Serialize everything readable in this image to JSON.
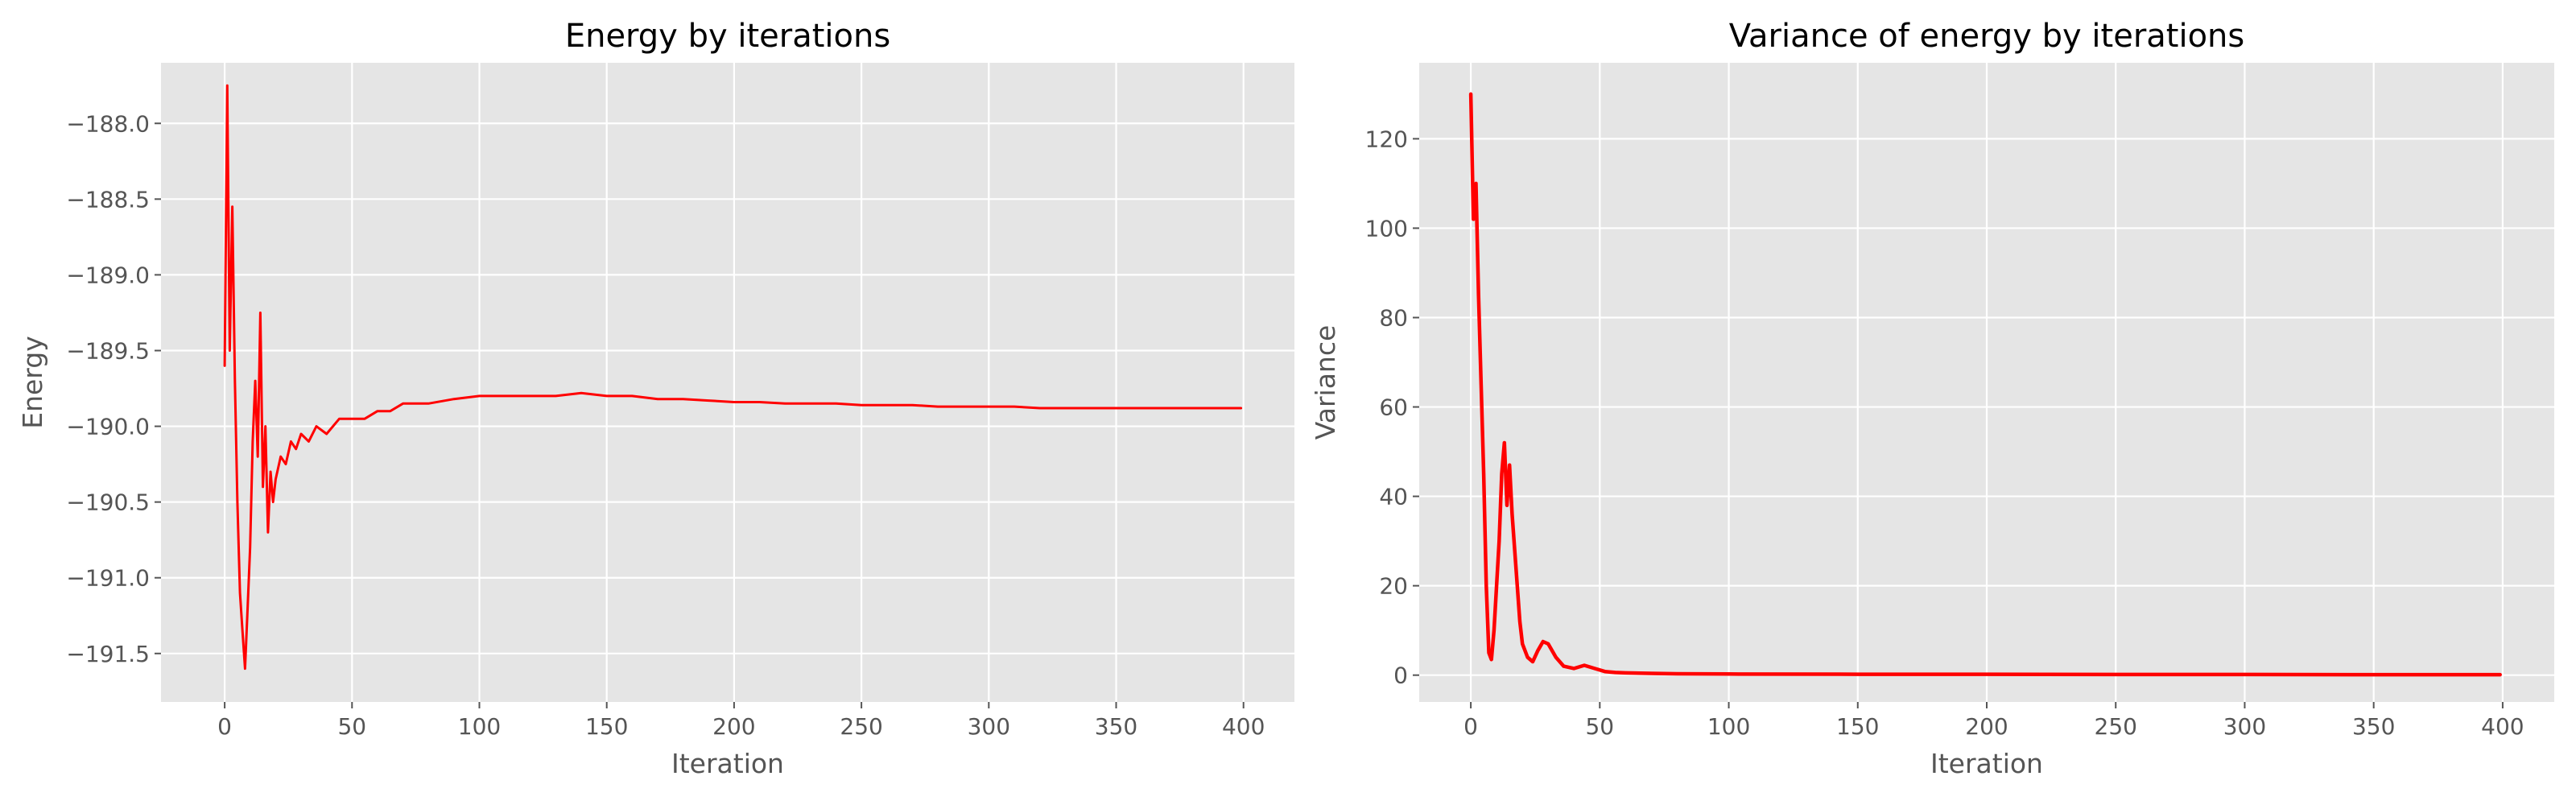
{
  "chart_data": [
    {
      "type": "line",
      "title": "Energy by iterations",
      "xlabel": "Iteration",
      "ylabel": "Energy",
      "xlim": [
        -25,
        420
      ],
      "ylim": [
        -191.82,
        -187.6
      ],
      "xticks": [
        0,
        50,
        100,
        150,
        200,
        250,
        300,
        350,
        400
      ],
      "xtick_labels": [
        "0",
        "50",
        "100",
        "150",
        "200",
        "250",
        "300",
        "350",
        "400"
      ],
      "yticks": [
        -188.0,
        -188.5,
        -189.0,
        -189.5,
        -190.0,
        -190.5,
        -191.0,
        -191.5
      ],
      "ytick_labels": [
        "−188.0",
        "−188.5",
        "−189.0",
        "−189.5",
        "−190.0",
        "−190.5",
        "−191.0",
        "−191.5"
      ],
      "grid": true,
      "style": "ggplot",
      "series": [
        {
          "color": "#ff0000",
          "x": [
            0,
            1,
            2,
            3,
            4,
            5,
            6,
            7,
            8,
            9,
            10,
            11,
            12,
            13,
            14,
            15,
            16,
            17,
            18,
            19,
            20,
            22,
            24,
            26,
            28,
            30,
            33,
            36,
            40,
            45,
            50,
            55,
            60,
            65,
            70,
            80,
            90,
            100,
            110,
            120,
            130,
            140,
            150,
            160,
            170,
            180,
            190,
            200,
            210,
            220,
            230,
            240,
            250,
            260,
            270,
            280,
            290,
            300,
            310,
            320,
            330,
            340,
            350,
            360,
            370,
            380,
            390,
            399
          ],
          "y": [
            -189.6,
            -187.75,
            -189.5,
            -188.55,
            -189.7,
            -190.5,
            -191.1,
            -191.35,
            -191.6,
            -191.2,
            -190.8,
            -190.1,
            -189.7,
            -190.2,
            -189.25,
            -190.4,
            -190.0,
            -190.7,
            -190.3,
            -190.5,
            -190.35,
            -190.2,
            -190.25,
            -190.1,
            -190.15,
            -190.05,
            -190.1,
            -190.0,
            -190.05,
            -189.95,
            -189.95,
            -189.95,
            -189.9,
            -189.9,
            -189.85,
            -189.85,
            -189.82,
            -189.8,
            -189.8,
            -189.8,
            -189.8,
            -189.78,
            -189.8,
            -189.8,
            -189.82,
            -189.82,
            -189.83,
            -189.84,
            -189.84,
            -189.85,
            -189.85,
            -189.85,
            -189.86,
            -189.86,
            -189.86,
            -189.87,
            -189.87,
            -189.87,
            -189.87,
            -189.88,
            -189.88,
            -189.88,
            -189.88,
            -189.88,
            -189.88,
            -189.88,
            -189.88,
            -189.88
          ]
        }
      ]
    },
    {
      "type": "line",
      "title": "Variance of energy by iterations",
      "xlabel": "Iteration",
      "ylabel": "Variance",
      "xlim": [
        -20,
        420
      ],
      "ylim": [
        -6,
        137
      ],
      "xticks": [
        0,
        50,
        100,
        150,
        200,
        250,
        300,
        350,
        400
      ],
      "xtick_labels": [
        "0",
        "50",
        "100",
        "150",
        "200",
        "250",
        "300",
        "350",
        "400"
      ],
      "yticks": [
        0,
        20,
        40,
        60,
        80,
        100,
        120
      ],
      "ytick_labels": [
        "0",
        "20",
        "40",
        "60",
        "80",
        "100",
        "120"
      ],
      "grid": true,
      "style": "ggplot",
      "series": [
        {
          "color": "#ff0000",
          "x": [
            0,
            1,
            2,
            3,
            4,
            5,
            6,
            7,
            8,
            9,
            10,
            11,
            12,
            13,
            14,
            15,
            16,
            17,
            18,
            19,
            20,
            22,
            24,
            26,
            28,
            30,
            33,
            36,
            40,
            44,
            48,
            52,
            56,
            60,
            70,
            80,
            100,
            150,
            200,
            250,
            300,
            350,
            399
          ],
          "y": [
            130,
            102,
            110,
            85,
            65,
            45,
            20,
            5,
            3.5,
            10,
            20,
            30,
            45,
            52,
            38,
            47,
            36,
            28,
            20,
            12,
            7,
            4,
            3,
            5.5,
            7.5,
            7,
            4,
            2,
            1.5,
            2.2,
            1.5,
            0.8,
            0.6,
            0.5,
            0.4,
            0.3,
            0.25,
            0.2,
            0.2,
            0.15,
            0.15,
            0.1,
            0.1
          ]
        }
      ]
    }
  ]
}
